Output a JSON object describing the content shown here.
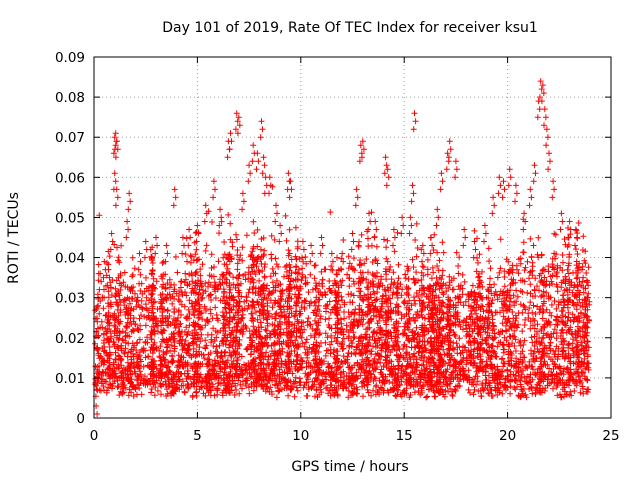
{
  "chart_data": {
    "type": "scatter",
    "title": "Day 101 of 2019, Rate Of TEC Index for receiver ksu1",
    "xlabel": "GPS time / hours",
    "ylabel": "ROTI / TECUs",
    "xlim": [
      0,
      25
    ],
    "ylim": [
      0,
      0.09
    ],
    "x_ticks": [
      0,
      5,
      10,
      15,
      20,
      25
    ],
    "y_ticks": [
      0,
      0.01,
      0.02,
      0.03,
      0.04,
      0.05,
      0.06,
      0.07,
      0.08,
      0.09
    ],
    "x_tick_labels": [
      "0",
      "5",
      "10",
      "15",
      "20",
      "25"
    ],
    "y_tick_labels": [
      "0",
      "0.01",
      "0.02",
      "0.03",
      "0.04",
      "0.05",
      "0.06",
      "0.07",
      "0.08",
      "0.09"
    ],
    "grid": true,
    "marker": "+",
    "series_color": "#ff0000",
    "series": [
      {
        "name": "ROTI",
        "description_of_distribution": "dense band 0.005-0.02 across 0-24 h with frequent spikes to 0.03-0.05",
        "points": [
          [
            0.1,
            0.003
          ],
          [
            0.15,
            0.012
          ],
          [
            0.2,
            0.028
          ],
          [
            0.3,
            0.036
          ],
          [
            0.5,
            0.039
          ],
          [
            0.7,
            0.037
          ],
          [
            0.85,
            0.046
          ],
          [
            1.0,
            0.07
          ],
          [
            1.05,
            0.071
          ],
          [
            1.1,
            0.069
          ],
          [
            1.0,
            0.061
          ],
          [
            1.1,
            0.057
          ],
          [
            1.6,
            0.049
          ],
          [
            1.7,
            0.056
          ],
          [
            2.2,
            0.041
          ],
          [
            2.5,
            0.044
          ],
          [
            3.0,
            0.045
          ],
          [
            3.5,
            0.043
          ],
          [
            3.9,
            0.057
          ],
          [
            4.3,
            0.045
          ],
          [
            4.6,
            0.047
          ],
          [
            5.0,
            0.048
          ],
          [
            5.4,
            0.053
          ],
          [
            5.8,
            0.059
          ],
          [
            6.1,
            0.052
          ],
          [
            6.5,
            0.069
          ],
          [
            6.6,
            0.071
          ],
          [
            6.9,
            0.076
          ],
          [
            7.0,
            0.075
          ],
          [
            7.2,
            0.056
          ],
          [
            7.5,
            0.063
          ],
          [
            7.7,
            0.068
          ],
          [
            7.9,
            0.066
          ],
          [
            8.1,
            0.074
          ],
          [
            8.2,
            0.065
          ],
          [
            8.3,
            0.06
          ],
          [
            8.5,
            0.06
          ],
          [
            8.8,
            0.053
          ],
          [
            9.0,
            0.048
          ],
          [
            9.4,
            0.061
          ],
          [
            9.5,
            0.059
          ],
          [
            10.1,
            0.044
          ],
          [
            10.5,
            0.043
          ],
          [
            11.0,
            0.045
          ],
          [
            11.5,
            0.041
          ],
          [
            12.0,
            0.041
          ],
          [
            12.5,
            0.046
          ],
          [
            12.7,
            0.057
          ],
          [
            12.9,
            0.068
          ],
          [
            13.0,
            0.069
          ],
          [
            13.3,
            0.051
          ],
          [
            13.6,
            0.049
          ],
          [
            14.1,
            0.065
          ],
          [
            14.2,
            0.062
          ],
          [
            14.5,
            0.047
          ],
          [
            14.9,
            0.05
          ],
          [
            15.3,
            0.05
          ],
          [
            15.4,
            0.058
          ],
          [
            15.5,
            0.076
          ],
          [
            15.9,
            0.043
          ],
          [
            16.3,
            0.045
          ],
          [
            16.6,
            0.052
          ],
          [
            16.8,
            0.061
          ],
          [
            17.1,
            0.066
          ],
          [
            17.2,
            0.069
          ],
          [
            17.5,
            0.064
          ],
          [
            17.9,
            0.047
          ],
          [
            18.4,
            0.044
          ],
          [
            18.9,
            0.048
          ],
          [
            19.3,
            0.055
          ],
          [
            19.6,
            0.06
          ],
          [
            19.8,
            0.059
          ],
          [
            20.1,
            0.062
          ],
          [
            20.4,
            0.058
          ],
          [
            20.8,
            0.051
          ],
          [
            21.1,
            0.057
          ],
          [
            21.3,
            0.063
          ],
          [
            21.5,
            0.079
          ],
          [
            21.6,
            0.084
          ],
          [
            21.7,
            0.083
          ],
          [
            21.8,
            0.077
          ],
          [
            21.9,
            0.072
          ],
          [
            22.0,
            0.066
          ],
          [
            22.2,
            0.059
          ],
          [
            22.6,
            0.051
          ],
          [
            23.0,
            0.049
          ],
          [
            23.3,
            0.047
          ],
          [
            23.6,
            0.037
          ],
          [
            23.9,
            0.031
          ]
        ]
      }
    ]
  }
}
